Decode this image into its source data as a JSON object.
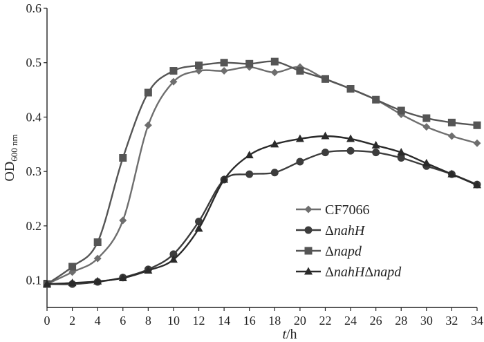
{
  "chart_data": {
    "type": "line",
    "xlabel_italic": "t",
    "xlabel_rest": "/h",
    "ylabel_main": "OD",
    "ylabel_sub": "600 nm",
    "xlim": [
      0,
      34
    ],
    "ylim": [
      0.05,
      0.6
    ],
    "xticks": [
      0,
      2,
      4,
      6,
      8,
      10,
      12,
      14,
      16,
      18,
      20,
      22,
      24,
      26,
      28,
      30,
      32,
      34
    ],
    "yticks": [
      0.1,
      0.2,
      0.3,
      0.4,
      0.5,
      0.6
    ],
    "ytick_labels": [
      "0.1",
      "0.2",
      "0.3",
      "0.4",
      "0.5",
      "0.6"
    ],
    "grid": false,
    "legend_position": "bottom-right",
    "x": [
      0,
      2,
      4,
      6,
      8,
      10,
      12,
      14,
      16,
      18,
      20,
      22,
      24,
      26,
      28,
      30,
      32,
      34
    ],
    "series": [
      {
        "legend_parts": [
          {
            "text": "CF7066",
            "italic": false
          }
        ],
        "marker": "diamond",
        "color": "#6e6e6e",
        "values": [
          0.093,
          0.115,
          0.14,
          0.21,
          0.385,
          0.465,
          0.485,
          0.485,
          0.492,
          0.482,
          0.492,
          0.47,
          0.452,
          0.432,
          0.405,
          0.382,
          0.365,
          0.352
        ]
      },
      {
        "legend_parts": [
          {
            "text": "Δ",
            "italic": false
          },
          {
            "text": "nahH",
            "italic": true
          }
        ],
        "marker": "circle",
        "color": "#3c3c3c",
        "values": [
          0.093,
          0.093,
          0.097,
          0.105,
          0.12,
          0.148,
          0.208,
          0.285,
          0.295,
          0.298,
          0.318,
          0.335,
          0.338,
          0.335,
          0.325,
          0.31,
          0.295,
          0.276
        ]
      },
      {
        "legend_parts": [
          {
            "text": "Δ",
            "italic": false
          },
          {
            "text": "napd",
            "italic": true
          }
        ],
        "marker": "square",
        "color": "#555555",
        "values": [
          0.093,
          0.125,
          0.17,
          0.325,
          0.445,
          0.485,
          0.495,
          0.5,
          0.498,
          0.502,
          0.485,
          0.47,
          0.452,
          0.432,
          0.412,
          0.398,
          0.39,
          0.385
        ]
      },
      {
        "legend_parts": [
          {
            "text": "Δ",
            "italic": false
          },
          {
            "text": "nahH",
            "italic": true
          },
          {
            "text": "Δ",
            "italic": false
          },
          {
            "text": "napd",
            "italic": true
          }
        ],
        "marker": "triangle",
        "color": "#2a2a2a",
        "values": [
          0.093,
          0.095,
          0.098,
          0.104,
          0.118,
          0.138,
          0.195,
          0.285,
          0.33,
          0.35,
          0.36,
          0.365,
          0.36,
          0.348,
          0.335,
          0.315,
          0.295,
          0.275
        ]
      }
    ]
  }
}
